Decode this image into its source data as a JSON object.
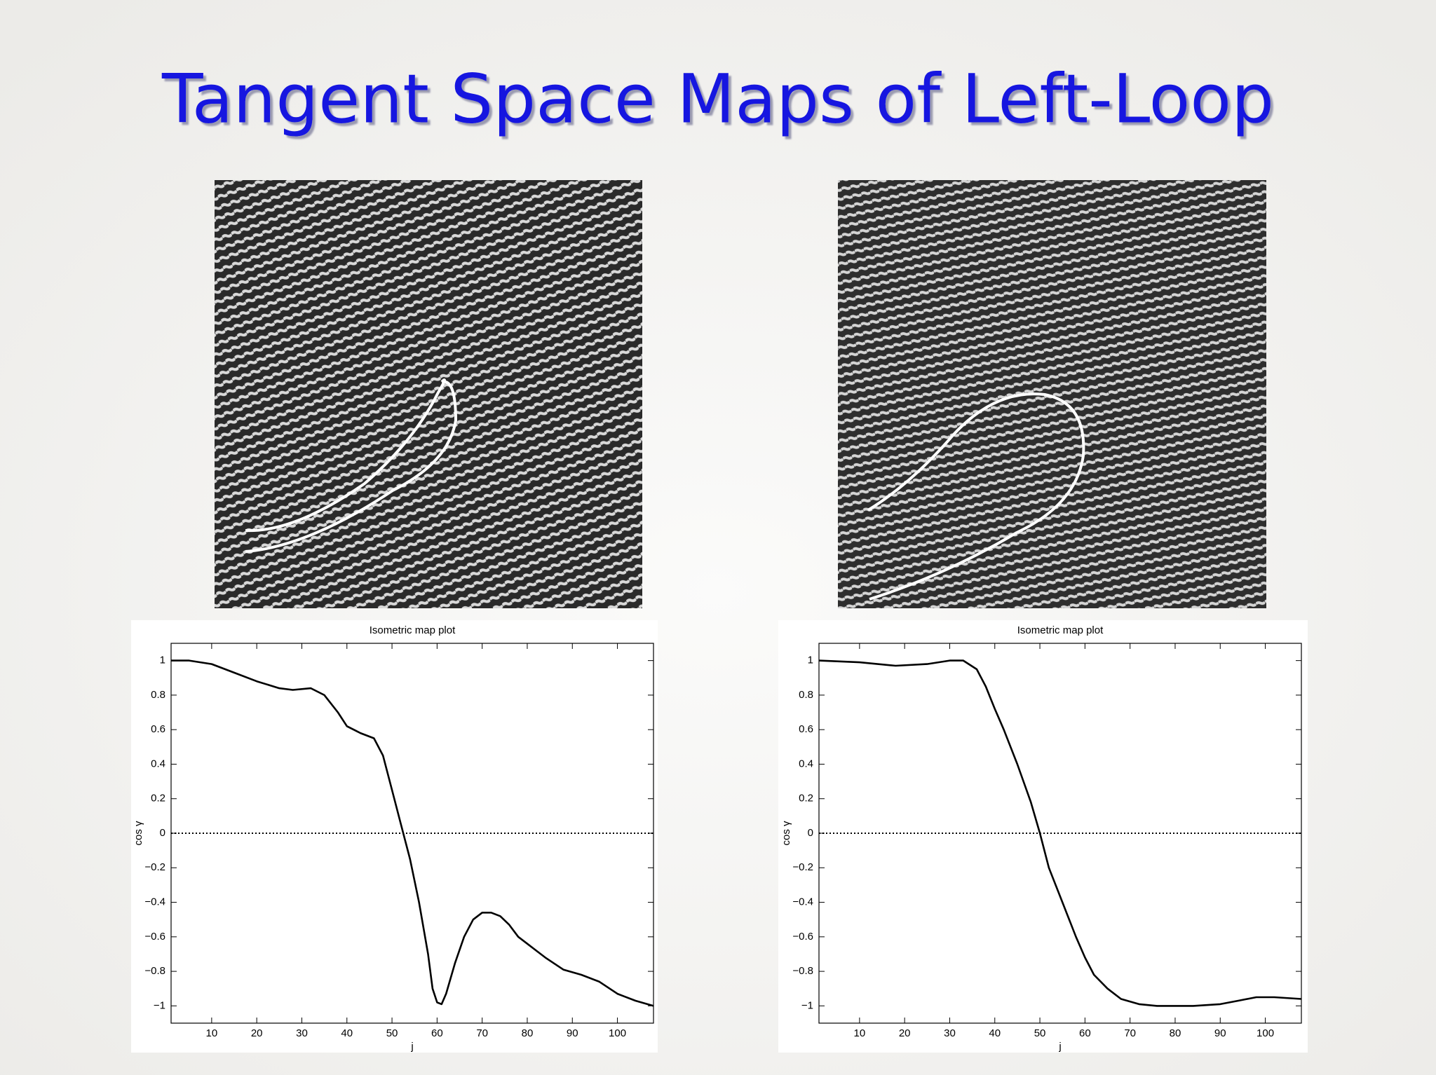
{
  "title": "Tangent Space Maps of Left-Loop",
  "chart_data": [
    {
      "type": "line",
      "title": "Isometric map plot",
      "x_label": "j",
      "y_label": "cos γ",
      "x": [
        1,
        5,
        10,
        15,
        20,
        25,
        28,
        32,
        35,
        38,
        40,
        43,
        46,
        48,
        50,
        52,
        54,
        56,
        58,
        59,
        60,
        61,
        62,
        64,
        66,
        68,
        70,
        72,
        74,
        76,
        78,
        80,
        84,
        88,
        92,
        96,
        100,
        104,
        108
      ],
      "values": [
        1.0,
        1.0,
        0.98,
        0.93,
        0.88,
        0.84,
        0.83,
        0.84,
        0.8,
        0.7,
        0.62,
        0.58,
        0.55,
        0.45,
        0.25,
        0.05,
        -0.15,
        -0.4,
        -0.7,
        -0.9,
        -0.98,
        -0.99,
        -0.93,
        -0.75,
        -0.6,
        -0.5,
        -0.46,
        -0.46,
        -0.48,
        -0.53,
        -0.6,
        -0.64,
        -0.72,
        -0.79,
        -0.82,
        -0.86,
        -0.93,
        -0.97,
        -1.0
      ],
      "color": "#000000",
      "reference_line": 0,
      "xlim": [
        1,
        108
      ],
      "xticks": [
        10,
        20,
        30,
        40,
        50,
        60,
        70,
        80,
        90,
        100
      ],
      "ylim": [
        -1.1,
        1.1
      ],
      "yticks": [
        {
          "value": -1,
          "label": "−1"
        },
        {
          "value": -0.8,
          "label": "−0.8"
        },
        {
          "value": -0.6,
          "label": "−0.6"
        },
        {
          "value": -0.4,
          "label": "−0.4"
        },
        {
          "value": -0.2,
          "label": "−0.2"
        },
        0,
        0.2,
        0.4,
        0.6,
        0.8,
        1
      ],
      "grid": false
    },
    {
      "type": "line",
      "title": "Isometric map plot",
      "x_label": "j",
      "y_label": "cos γ",
      "x": [
        1,
        10,
        18,
        25,
        30,
        33,
        36,
        38,
        40,
        42,
        45,
        48,
        50,
        52,
        55,
        58,
        60,
        62,
        65,
        68,
        72,
        76,
        84,
        90,
        94,
        98,
        102,
        108
      ],
      "values": [
        1.0,
        0.99,
        0.97,
        0.98,
        1.0,
        1.0,
        0.95,
        0.85,
        0.72,
        0.6,
        0.4,
        0.18,
        0.0,
        -0.2,
        -0.4,
        -0.6,
        -0.72,
        -0.82,
        -0.9,
        -0.96,
        -0.99,
        -1.0,
        -1.0,
        -0.99,
        -0.97,
        -0.95,
        -0.95,
        -0.96
      ],
      "color": "#000000",
      "reference_line": 0,
      "xlim": [
        1,
        108
      ],
      "xticks": [
        10,
        20,
        30,
        40,
        50,
        60,
        70,
        80,
        90,
        100
      ],
      "ylim": [
        -1.1,
        1.1
      ],
      "yticks": [
        {
          "value": -1,
          "label": "−1"
        },
        {
          "value": -0.8,
          "label": "−0.8"
        },
        {
          "value": -0.6,
          "label": "−0.6"
        },
        {
          "value": -0.4,
          "label": "−0.4"
        },
        {
          "value": -0.2,
          "label": "−0.2"
        },
        0,
        0.2,
        0.4,
        0.6,
        0.8,
        1
      ],
      "grid": false
    }
  ]
}
